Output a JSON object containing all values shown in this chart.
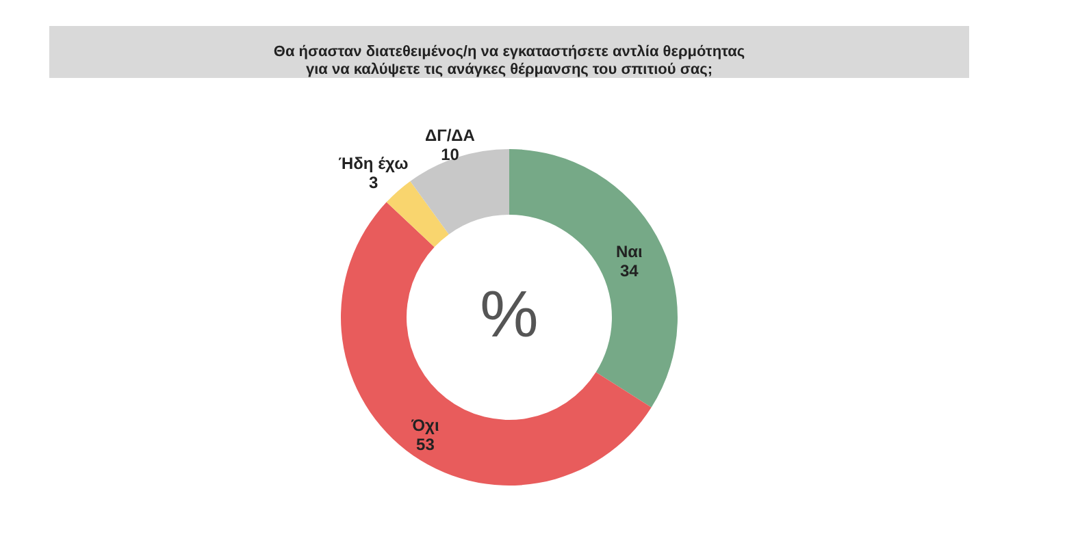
{
  "chart_data": {
    "type": "donut",
    "title": "Θα ήσασταν διατεθειμένος/η να εγκαταστήσετε αντλία θερμότητας\nγια να καλύψετε τις ανάγκες θέρμανσης του σπιτιού σας;",
    "categories": [
      "Ναι",
      "Όχι",
      "Ήδη έχω",
      "ΔΓ/ΔΑ"
    ],
    "values": [
      34,
      53,
      3,
      10
    ],
    "colors": [
      "#76a987",
      "#e85c5c",
      "#f9d56e",
      "#c8c8c8"
    ],
    "data_labels": true,
    "annotations": [
      "%"
    ]
  }
}
